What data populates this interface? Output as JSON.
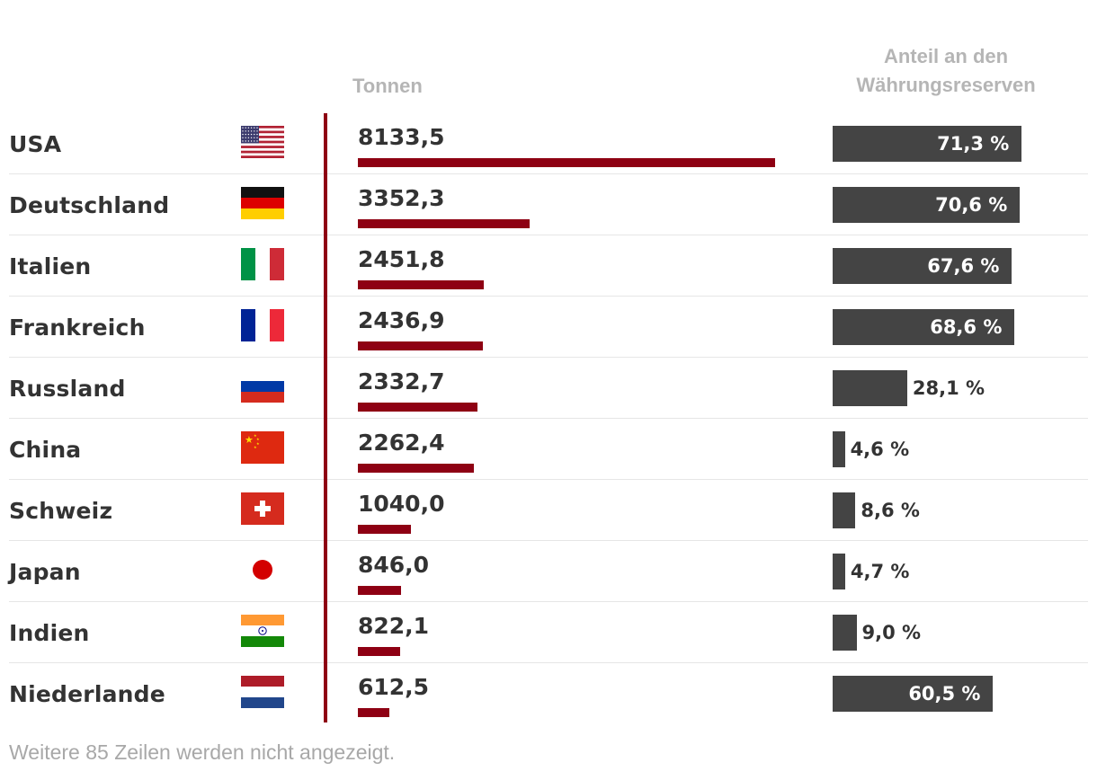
{
  "chart_data": {
    "type": "table",
    "columns": {
      "tonnes_header": "Tonnen",
      "share_header": "Anteil an den Währungsreserven"
    },
    "rows": [
      {
        "country": "USA",
        "flag": "usa-flag-icon",
        "tonnes": 8133.5,
        "tonnes_label": "8133,5",
        "share": 71.3,
        "share_label": "71,3 %"
      },
      {
        "country": "Deutschland",
        "flag": "germany-flag-icon",
        "tonnes": 3352.3,
        "tonnes_label": "3352,3",
        "share": 70.6,
        "share_label": "70,6 %"
      },
      {
        "country": "Italien",
        "flag": "italy-flag-icon",
        "tonnes": 2451.8,
        "tonnes_label": "2451,8",
        "share": 67.6,
        "share_label": "67,6 %"
      },
      {
        "country": "Frankreich",
        "flag": "france-flag-icon",
        "tonnes": 2436.9,
        "tonnes_label": "2436,9",
        "share": 68.6,
        "share_label": "68,6 %"
      },
      {
        "country": "Russland",
        "flag": "russia-flag-icon",
        "tonnes": 2332.7,
        "tonnes_label": "2332,7",
        "share": 28.1,
        "share_label": "28,1 %"
      },
      {
        "country": "China",
        "flag": "china-flag-icon",
        "tonnes": 2262.4,
        "tonnes_label": "2262,4",
        "share": 4.6,
        "share_label": "4,6 %"
      },
      {
        "country": "Schweiz",
        "flag": "switzerland-flag-icon",
        "tonnes": 1040.0,
        "tonnes_label": "1040,0",
        "share": 8.6,
        "share_label": "8,6 %"
      },
      {
        "country": "Japan",
        "flag": "japan-flag-icon",
        "tonnes": 846.0,
        "tonnes_label": "846,0",
        "share": 4.7,
        "share_label": "4,7 %"
      },
      {
        "country": "Indien",
        "flag": "india-flag-icon",
        "tonnes": 822.1,
        "tonnes_label": "822,1",
        "share": 9.0,
        "share_label": "9,0 %"
      },
      {
        "country": "Niederlande",
        "flag": "netherlands-flag-icon",
        "tonnes": 612.5,
        "tonnes_label": "612,5",
        "share": 60.5,
        "share_label": "60,5 %"
      }
    ],
    "tonnes_max": 8133.5,
    "share_max": 100,
    "colors": {
      "tonnes_bar": "#8e0013",
      "share_bar": "#444444"
    },
    "footer": "Weitere 85 Zeilen werden nicht angezeigt."
  }
}
